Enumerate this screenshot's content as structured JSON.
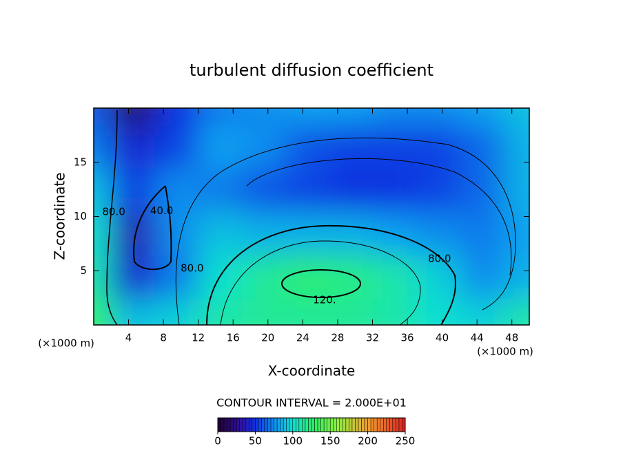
{
  "chart_data": {
    "type": "contour",
    "title": "turbulent diffusion coefficient",
    "xlabel": "X-coordinate",
    "ylabel": "Z-coordinate",
    "x_unit_labels": [
      "(×1000 m)",
      "(×1000 m)"
    ],
    "xlim": [
      0,
      50
    ],
    "ylim": [
      0,
      20
    ],
    "xticks": [
      4,
      8,
      12,
      16,
      20,
      24,
      28,
      32,
      36,
      40,
      44,
      48
    ],
    "yticks": [
      5,
      10,
      15
    ],
    "x": [
      0,
      5,
      10,
      15,
      20,
      25,
      30,
      35,
      40,
      45,
      50
    ],
    "y": [
      20,
      16,
      12,
      8,
      4,
      0
    ],
    "z": [
      [
        60,
        15,
        50,
        70,
        75,
        80,
        80,
        75,
        75,
        80,
        90
      ],
      [
        70,
        45,
        55,
        80,
        75,
        60,
        55,
        55,
        55,
        65,
        85
      ],
      [
        90,
        55,
        75,
        70,
        60,
        55,
        50,
        50,
        55,
        65,
        85
      ],
      [
        100,
        35,
        75,
        90,
        85,
        85,
        85,
        80,
        75,
        70,
        80
      ],
      [
        110,
        45,
        70,
        100,
        115,
        125,
        120,
        110,
        95,
        75,
        85
      ],
      [
        130,
        90,
        95,
        110,
        115,
        115,
        115,
        110,
        100,
        95,
        110
      ]
    ],
    "contour_labels": [
      {
        "text": "40.0",
        "x": 7.8,
        "y": 10.5
      },
      {
        "text": "80.0",
        "x": 2.3,
        "y": 10.4
      },
      {
        "text": "80.0",
        "x": 11.3,
        "y": 5.2
      },
      {
        "text": "80.0",
        "x": 39.7,
        "y": 6.1
      },
      {
        "text": "120.",
        "x": 26.5,
        "y": 2.3
      }
    ],
    "contour_interval": "CONTOUR INTERVAL = 2.000E+01",
    "colorbar": {
      "lim": [
        0,
        250
      ],
      "ticks": [
        0,
        50,
        100,
        150,
        200,
        250
      ]
    }
  }
}
